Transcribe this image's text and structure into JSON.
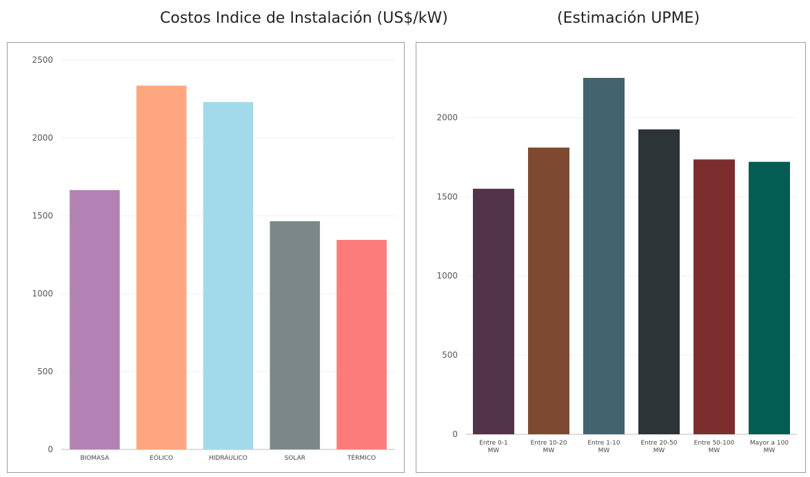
{
  "header": {
    "title": "Costos Indice de Instalación  (US$/kW)",
    "subtitle": "(Estimación  UPME)"
  },
  "chart_data": [
    {
      "type": "bar",
      "title": "",
      "xlabel": "",
      "ylabel": "",
      "categories": [
        "BIOMASA",
        "EÓLICO",
        "HIDRÁULICO",
        "SOLAR",
        "TÉRMICO"
      ],
      "values": [
        1665,
        2335,
        2230,
        1465,
        1345
      ],
      "colors": [
        "#B381B3",
        "#FDA67F",
        "#A2DAEB",
        "#7C8789",
        "#FB7C7B"
      ],
      "ylim": [
        0,
        2500
      ],
      "yticks": [
        0,
        500,
        1000,
        1500,
        2000,
        2500
      ],
      "grid": true,
      "legend": "none"
    },
    {
      "type": "bar",
      "title": "",
      "xlabel": "",
      "ylabel": "",
      "categories": [
        [
          "Entre 0-1",
          "MW"
        ],
        [
          "Entre 10-20",
          "MW"
        ],
        [
          "Entre 1-10",
          "MW"
        ],
        [
          "Entre 20-50",
          "MW"
        ],
        [
          "Entre 50-100",
          "MW"
        ],
        [
          "Mayor a 100",
          "MW"
        ]
      ],
      "values": [
        1550,
        1810,
        2250,
        1925,
        1735,
        1720
      ],
      "colors": [
        "#52344A",
        "#7D4931",
        "#41646F",
        "#2C3437",
        "#7C2D2E",
        "#035D53"
      ],
      "ylim": [
        0,
        2350
      ],
      "yticks": [
        0,
        500,
        1000,
        1500,
        2000
      ],
      "grid": true,
      "legend": "none"
    }
  ]
}
